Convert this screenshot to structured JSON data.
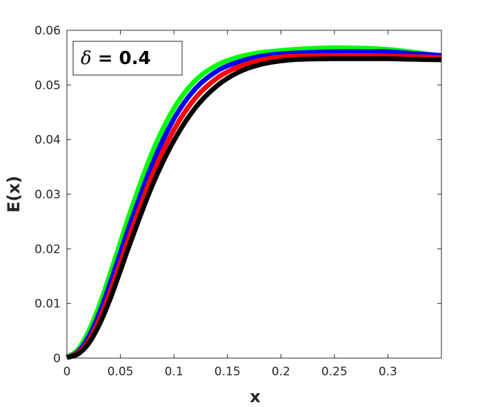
{
  "chart_data": {
    "type": "line",
    "title": "",
    "xlabel": "x",
    "ylabel": "E(x)",
    "xlim": [
      0,
      0.35
    ],
    "ylim": [
      0,
      0.06
    ],
    "x_ticks": [
      "0",
      "0.05",
      "0.1",
      "0.15",
      "0.2",
      "0.25",
      "0.3"
    ],
    "x_tick_values": [
      0,
      0.05,
      0.1,
      0.15,
      0.2,
      0.25,
      0.3
    ],
    "y_ticks": [
      "0",
      "0.01",
      "0.02",
      "0.03",
      "0.04",
      "0.05",
      "0.06"
    ],
    "y_tick_values": [
      0,
      0.01,
      0.02,
      0.03,
      0.04,
      0.05,
      0.06
    ],
    "grid": false,
    "annotation": {
      "symbol": "δ",
      "text": " = 0.4",
      "placement": "top-left"
    },
    "x": [
      0,
      0.01,
      0.02,
      0.03,
      0.04,
      0.05,
      0.06,
      0.08,
      0.1,
      0.12,
      0.14,
      0.16,
      0.18,
      0.2,
      0.22,
      0.25,
      0.28,
      0.3,
      0.32,
      0.35
    ],
    "series": [
      {
        "color": "#00ff00",
        "values": [
          0.0002,
          0.0015,
          0.0048,
          0.0095,
          0.0152,
          0.0212,
          0.0272,
          0.0378,
          0.0457,
          0.0508,
          0.0536,
          0.0551,
          0.0559,
          0.0563,
          0.0566,
          0.0568,
          0.0567,
          0.0565,
          0.0561,
          0.0553
        ]
      },
      {
        "color": "#0000ff",
        "values": [
          0.0001,
          0.0011,
          0.0038,
          0.0081,
          0.0135,
          0.0193,
          0.0251,
          0.0356,
          0.0438,
          0.0493,
          0.0525,
          0.0542,
          0.0552,
          0.0557,
          0.0559,
          0.0561,
          0.0561,
          0.0561,
          0.0558,
          0.0554
        ]
      },
      {
        "color": "#ff0000",
        "values": [
          0.0001,
          0.0009,
          0.0031,
          0.0069,
          0.0119,
          0.0175,
          0.0232,
          0.0336,
          0.0418,
          0.0476,
          0.0512,
          0.0533,
          0.0545,
          0.0551,
          0.0553,
          0.0554,
          0.0554,
          0.0553,
          0.0552,
          0.055
        ]
      },
      {
        "color": "#000000",
        "values": [
          0.0001,
          0.0007,
          0.0026,
          0.006,
          0.0106,
          0.016,
          0.0215,
          0.0317,
          0.0398,
          0.0458,
          0.0498,
          0.0523,
          0.0537,
          0.0544,
          0.0547,
          0.0548,
          0.0548,
          0.0548,
          0.0547,
          0.0546
        ]
      }
    ]
  }
}
